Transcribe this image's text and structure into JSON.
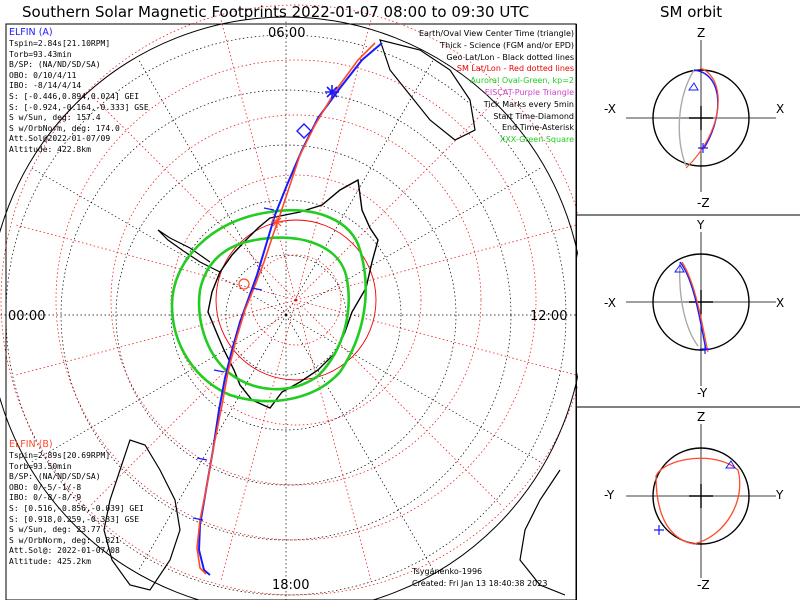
{
  "title": "Southern Solar Magnetic Footprints 2022-01-07 08:00 to 09:30 UTC",
  "sm_title": "SM orbit",
  "hour_labels": {
    "top": "06:00",
    "left": "00:00",
    "right": "12:00",
    "bottom": "18:00"
  },
  "elfin_a": {
    "name": "ELFIN (A)",
    "color": "#1a1aff",
    "lines": [
      "Tspin=2.84s[21.10RPM]",
      "Torb=93.43min",
      "B/SP: (NA/ND/SD/SA)",
      "OBO: 0/10/4/11",
      "IBO: -8/14/4/14",
      "S: [-0.446,0.894,0.024] GEI",
      "S: [-0.924,-0.164,-0.333] GSE",
      "S w/Sun, deg: 157.4",
      "S w/OrbNorm, deg: 174.0",
      "Att.Sol@2022-01-07/09",
      "Altitude: 422.8km"
    ]
  },
  "elfin_b": {
    "name": "ELFIN (B)",
    "color": "#ff4a2a",
    "lines": [
      "Tspin=2.89s[20.69RPM]",
      "Torb=93.50min",
      "B/SP: (NA/ND/SD/SA)",
      "OBO: 0/-5/-1/-8",
      "IBO: 0/-8/-8/-9",
      "S: [0.516,-0.856,-0.039] GEI",
      "S: [0.918,0.259,-0.333] GSE",
      "S w/Sun, deg: 23.77",
      "S w/OrbNorm, deg: 0.821",
      "Att.Sol@: 2022-01-07/08",
      "Altitude: 425.2km"
    ]
  },
  "legend": [
    {
      "text": "Earth/Oval View Center Time (triangle)",
      "color": "#000000"
    },
    {
      "text": "Thick - Science (FGM and/or EPD)",
      "color": "#000000"
    },
    {
      "text": "Geo Lat/Lon - Black dotted lines",
      "color": "#000000"
    },
    {
      "text": "SM Lat/Lon - Red dotted lines",
      "color": "#ee0000"
    },
    {
      "text": "Auroral Oval-Green, kp=2",
      "color": "#22cc22"
    },
    {
      "text": "EISCAT-Purple Triangle",
      "color": "#cc44cc"
    },
    {
      "text": "Tick Marks every 5min",
      "color": "#000000"
    },
    {
      "text": "Start Time-Diamond",
      "color": "#000000"
    },
    {
      "text": "End Time-Asterisk",
      "color": "#000000"
    },
    {
      "text": "XXX-Green Square",
      "color": "#22cc22"
    }
  ],
  "credits": {
    "author": "Tsyganenko-1996",
    "created": "Created: Fri Jan 13 18:40:38 2023"
  },
  "sm_panels": [
    {
      "top": "Z",
      "bottom": "-Z",
      "left": "-X",
      "right": "X"
    },
    {
      "top": "Y",
      "bottom": "-Y",
      "left": "-X",
      "right": "X"
    },
    {
      "top": "Z",
      "bottom": "-Z",
      "left": "-Y",
      "right": "Y"
    }
  ],
  "colors": {
    "oval": "#22cc22",
    "sm_grid": "#ee0000",
    "geo_grid": "#000000",
    "orbit_gray": "#aaaaaa"
  }
}
